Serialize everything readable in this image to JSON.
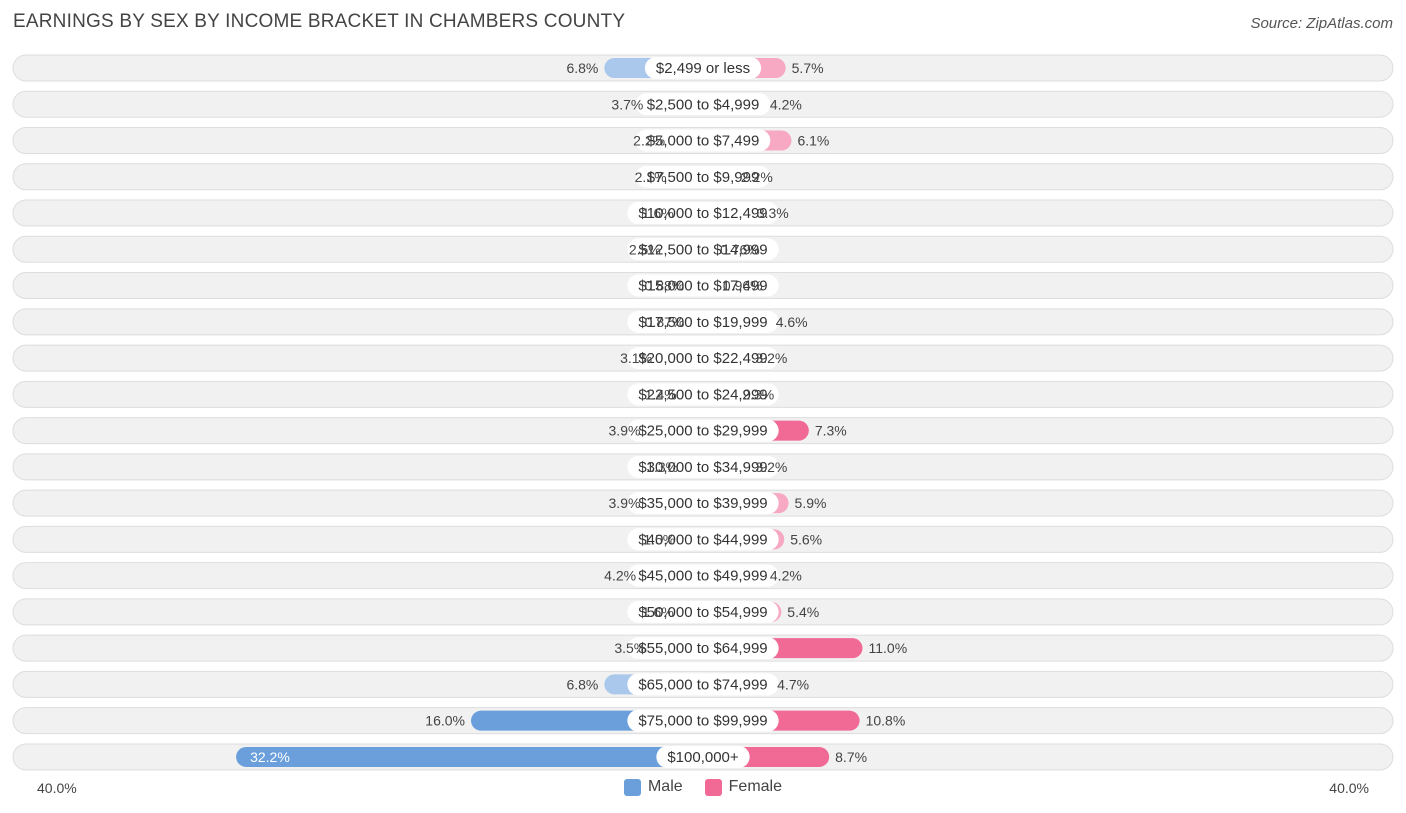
{
  "title": "EARNINGS BY SEX BY INCOME BRACKET IN CHAMBERS COUNTY",
  "source": "Source: ZipAtlas.com",
  "axis": {
    "left_label": "40.0%",
    "right_label": "40.0%"
  },
  "legend": {
    "male": "Male",
    "female": "Female"
  },
  "colors": {
    "male_light": "#a9c8ec",
    "male_dark": "#6a9fdb",
    "female_light": "#f7a8c2",
    "female_dark": "#f06a95",
    "row_bg": "#f1f1f1",
    "row_border": "#dddddd"
  },
  "chart_data": {
    "type": "bar",
    "orientation": "horizontal-diverging",
    "title": "EARNINGS BY SEX BY INCOME BRACKET IN CHAMBERS COUNTY",
    "xlim": [
      -40,
      40
    ],
    "categories": [
      "$2,499 or less",
      "$2,500 to $4,999",
      "$5,000 to $7,499",
      "$7,500 to $9,999",
      "$10,000 to $12,499",
      "$12,500 to $14,999",
      "$15,000 to $17,499",
      "$17,500 to $19,999",
      "$20,000 to $22,499",
      "$22,500 to $24,999",
      "$25,000 to $29,999",
      "$30,000 to $34,999",
      "$35,000 to $39,999",
      "$40,000 to $44,999",
      "$45,000 to $49,999",
      "$50,000 to $54,999",
      "$55,000 to $64,999",
      "$65,000 to $74,999",
      "$75,000 to $99,999",
      "$100,000+"
    ],
    "series": [
      {
        "name": "Male",
        "values": [
          6.8,
          3.7,
          2.2,
          2.1,
          1.6,
          2.5,
          0.88,
          0.87,
          3.1,
          1.4,
          3.9,
          1.3,
          3.9,
          1.5,
          4.2,
          1.6,
          3.5,
          6.8,
          16.0,
          32.2
        ],
        "labels": [
          "6.8%",
          "3.7%",
          "2.2%",
          "2.1%",
          "1.6%",
          "2.5%",
          "0.88%",
          "0.87%",
          "3.1%",
          "1.4%",
          "3.9%",
          "1.3%",
          "3.9%",
          "1.5%",
          "4.2%",
          "1.6%",
          "3.5%",
          "6.8%",
          "16.0%",
          "32.2%"
        ]
      },
      {
        "name": "Female",
        "values": [
          5.7,
          4.2,
          6.1,
          2.2,
          3.3,
          0.76,
          0.96,
          4.6,
          3.2,
          2.3,
          7.3,
          3.2,
          5.9,
          5.6,
          4.2,
          5.4,
          11.0,
          4.7,
          10.8,
          8.7
        ],
        "labels": [
          "5.7%",
          "4.2%",
          "6.1%",
          "2.2%",
          "3.3%",
          "0.76%",
          "0.96%",
          "4.6%",
          "3.2%",
          "2.3%",
          "7.3%",
          "3.2%",
          "5.9%",
          "5.6%",
          "4.2%",
          "5.4%",
          "11.0%",
          "4.7%",
          "10.8%",
          "8.7%"
        ]
      }
    ]
  }
}
